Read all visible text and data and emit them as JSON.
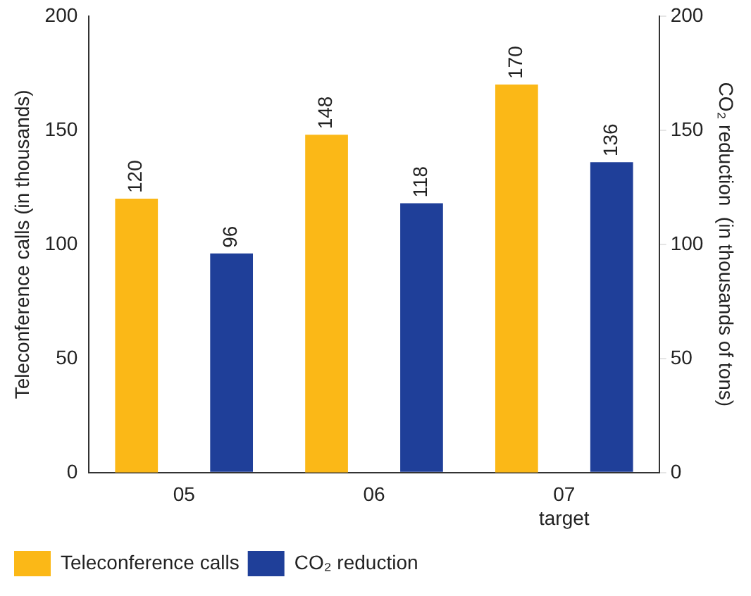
{
  "chart_data": {
    "type": "bar",
    "categories": [
      "05",
      "06",
      "07\ntarget"
    ],
    "series": [
      {
        "name": "Teleconference calls",
        "color": "#fbb817",
        "values": [
          120,
          148,
          170
        ]
      },
      {
        "name": "CO₂ reduction",
        "color": "#1f3f99",
        "values": [
          96,
          118,
          136
        ],
        "axis": "y2"
      }
    ],
    "ylabel": "Teleconference calls (in thousands)",
    "y2label": "CO₂ reduction  (in thousands of tons)",
    "ylim": [
      0,
      200
    ],
    "yticks": [
      0,
      50,
      100,
      150,
      200
    ],
    "y2lim": [
      0,
      200
    ],
    "y2ticks": [
      0,
      50,
      100,
      150,
      200
    ],
    "grid": false,
    "legend": "bottom left",
    "data_labels": true
  }
}
